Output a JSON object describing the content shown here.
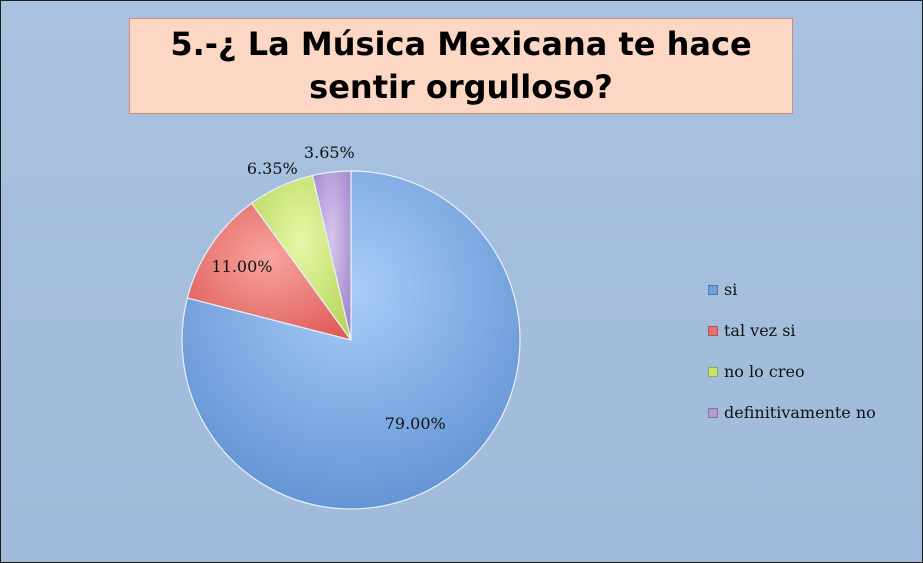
{
  "chart_data": {
    "type": "pie",
    "title": "5.-¿ La Música Mexicana te hace sentir orgulloso?",
    "categories": [
      "si",
      "tal vez si",
      "no lo creo",
      "definitivamente no"
    ],
    "values": [
      79.0,
      11.0,
      6.35,
      3.65
    ],
    "labels": [
      "79.00%",
      "11.00%",
      "6.35%",
      "3.65%"
    ],
    "colors": [
      "#6f9fde",
      "#e8716d",
      "#c6e36e",
      "#b49ad4"
    ],
    "legend_position": "right"
  }
}
